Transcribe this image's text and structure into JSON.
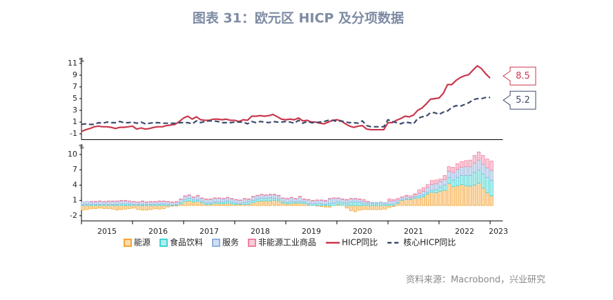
{
  "title": "图表 31：欧元区 HICP 及分项数据",
  "source": "资料来源：Macrobond，兴业研究",
  "chart_data": [
    {
      "type": "line",
      "y_unit": "%",
      "xlim": [
        2015,
        2023.25
      ],
      "ylim": [
        -2,
        12
      ],
      "yticks": [
        -1,
        1,
        3,
        5,
        7,
        9,
        11
      ],
      "x": [
        2015,
        2015.083,
        2015.167,
        2015.25,
        2015.333,
        2015.417,
        2015.5,
        2015.583,
        2015.667,
        2015.75,
        2015.833,
        2015.917,
        2016,
        2016.083,
        2016.167,
        2016.25,
        2016.333,
        2016.417,
        2016.5,
        2016.583,
        2016.667,
        2016.75,
        2016.833,
        2016.917,
        2017,
        2017.083,
        2017.167,
        2017.25,
        2017.333,
        2017.417,
        2017.5,
        2017.583,
        2017.667,
        2017.75,
        2017.833,
        2017.917,
        2018,
        2018.083,
        2018.167,
        2018.25,
        2018.333,
        2018.417,
        2018.5,
        2018.583,
        2018.667,
        2018.75,
        2018.833,
        2018.917,
        2019,
        2019.083,
        2019.167,
        2019.25,
        2019.333,
        2019.417,
        2019.5,
        2019.583,
        2019.667,
        2019.75,
        2019.833,
        2019.917,
        2020,
        2020.083,
        2020.167,
        2020.25,
        2020.333,
        2020.417,
        2020.5,
        2020.583,
        2020.667,
        2020.75,
        2020.833,
        2020.917,
        2021,
        2021.083,
        2021.167,
        2021.25,
        2021.333,
        2021.417,
        2021.5,
        2021.583,
        2021.667,
        2021.75,
        2021.833,
        2021.917,
        2022,
        2022.083,
        2022.167,
        2022.25,
        2022.333,
        2022.417,
        2022.5,
        2022.583,
        2022.667,
        2022.75,
        2022.833,
        2022.917,
        2023
      ],
      "series": [
        {
          "name": "HICP同比",
          "color": "#c9364b",
          "dash": false,
          "values": [
            -0.6,
            -0.3,
            -0.1,
            0.2,
            0.3,
            0.2,
            0.2,
            0.1,
            -0.1,
            0.1,
            0.1,
            0.2,
            0.3,
            -0.2,
            0.0,
            -0.2,
            -0.1,
            0.1,
            0.2,
            0.2,
            0.4,
            0.5,
            0.6,
            1.1,
            1.7,
            2.0,
            1.5,
            1.9,
            1.4,
            1.3,
            1.3,
            1.5,
            1.5,
            1.4,
            1.5,
            1.3,
            1.3,
            1.1,
            1.4,
            1.3,
            2.0,
            2.0,
            2.1,
            2.0,
            2.1,
            2.3,
            1.9,
            1.5,
            1.4,
            1.5,
            1.4,
            1.7,
            1.2,
            1.3,
            1.0,
            1.0,
            0.8,
            0.7,
            1.0,
            1.3,
            1.4,
            1.2,
            0.7,
            0.3,
            0.1,
            0.3,
            0.4,
            -0.2,
            -0.3,
            -0.3,
            -0.3,
            -0.3,
            0.9,
            0.9,
            1.3,
            1.6,
            2.0,
            1.9,
            2.2,
            3.0,
            3.4,
            4.1,
            4.9,
            5.0,
            5.1,
            5.9,
            7.4,
            7.4,
            8.1,
            8.6,
            8.9,
            9.1,
            9.9,
            10.6,
            10.1,
            9.2,
            8.5
          ]
        },
        {
          "name": "核心HICP同比",
          "color": "#3b4a6d",
          "dash": true,
          "values": [
            0.6,
            0.7,
            0.6,
            0.6,
            0.9,
            0.8,
            1.0,
            0.9,
            0.9,
            1.1,
            0.9,
            0.9,
            1.0,
            0.8,
            1.0,
            0.7,
            0.8,
            0.9,
            0.9,
            0.8,
            0.8,
            0.8,
            0.8,
            0.9,
            0.9,
            0.9,
            0.7,
            1.2,
            0.9,
            1.1,
            1.2,
            1.2,
            1.1,
            0.9,
            0.9,
            0.9,
            1.0,
            1.0,
            1.0,
            0.7,
            1.1,
            0.9,
            1.1,
            1.0,
            0.9,
            1.1,
            1.0,
            1.0,
            1.1,
            1.0,
            0.8,
            1.3,
            0.8,
            1.1,
            0.9,
            0.9,
            1.0,
            1.1,
            1.3,
            1.3,
            1.1,
            1.2,
            1.0,
            0.9,
            0.9,
            0.8,
            1.2,
            0.4,
            0.2,
            0.2,
            0.2,
            0.2,
            1.4,
            1.1,
            0.9,
            0.7,
            1.0,
            0.9,
            0.7,
            1.6,
            1.9,
            2.0,
            2.6,
            2.6,
            2.3,
            2.7,
            2.9,
            3.5,
            3.8,
            3.7,
            4.0,
            4.3,
            4.8,
            5.0,
            5.0,
            5.2,
            5.2
          ]
        }
      ]
    },
    {
      "type": "bar",
      "stacked": true,
      "y_unit": "%",
      "xlim": [
        2015,
        2023.25
      ],
      "ylim": [
        -3,
        12
      ],
      "yticks": [
        -2,
        1,
        4,
        7,
        10
      ],
      "xticks": [
        2015,
        2016,
        2017,
        2018,
        2019,
        2020,
        2021,
        2022,
        2023
      ],
      "x": [
        2015,
        2015.083,
        2015.167,
        2015.25,
        2015.333,
        2015.417,
        2015.5,
        2015.583,
        2015.667,
        2015.75,
        2015.833,
        2015.917,
        2016,
        2016.083,
        2016.167,
        2016.25,
        2016.333,
        2016.417,
        2016.5,
        2016.583,
        2016.667,
        2016.75,
        2016.833,
        2016.917,
        2017,
        2017.083,
        2017.167,
        2017.25,
        2017.333,
        2017.417,
        2017.5,
        2017.583,
        2017.667,
        2017.75,
        2017.833,
        2017.917,
        2018,
        2018.083,
        2018.167,
        2018.25,
        2018.333,
        2018.417,
        2018.5,
        2018.583,
        2018.667,
        2018.75,
        2018.833,
        2018.917,
        2019,
        2019.083,
        2019.167,
        2019.25,
        2019.333,
        2019.417,
        2019.5,
        2019.583,
        2019.667,
        2019.75,
        2019.833,
        2019.917,
        2020,
        2020.083,
        2020.167,
        2020.25,
        2020.333,
        2020.417,
        2020.5,
        2020.583,
        2020.667,
        2020.75,
        2020.833,
        2020.917,
        2021,
        2021.083,
        2021.167,
        2021.25,
        2021.333,
        2021.417,
        2021.5,
        2021.583,
        2021.667,
        2021.75,
        2021.833,
        2021.917,
        2022,
        2022.083,
        2022.167,
        2022.25,
        2022.333,
        2022.417,
        2022.5,
        2022.583,
        2022.667,
        2022.75,
        2022.833,
        2022.917,
        2023
      ],
      "series": [
        {
          "name": "能源",
          "color": "#f4a534",
          "values": [
            -0.9,
            -0.8,
            -0.6,
            -0.6,
            -0.5,
            -0.6,
            -0.6,
            -0.7,
            -0.9,
            -0.8,
            -0.7,
            -0.6,
            -0.5,
            -0.8,
            -0.9,
            -0.9,
            -0.8,
            -0.6,
            -0.7,
            -0.6,
            -0.3,
            -0.1,
            -0.1,
            0.3,
            0.8,
            0.9,
            0.7,
            0.8,
            0.5,
            0.2,
            0.2,
            0.4,
            0.4,
            0.3,
            0.5,
            0.3,
            0.2,
            0.2,
            0.2,
            0.3,
            0.6,
            0.8,
            0.9,
            0.9,
            0.9,
            1.0,
            0.9,
            0.5,
            0.3,
            0.4,
            0.5,
            0.5,
            0.4,
            0.1,
            0.0,
            -0.1,
            -0.2,
            -0.3,
            -0.3,
            0.0,
            0.2,
            0.0,
            -0.5,
            -1.0,
            -1.2,
            -0.9,
            -0.8,
            -0.8,
            -0.8,
            -0.8,
            -0.8,
            -0.7,
            -0.4,
            -0.2,
            0.4,
            1.0,
            1.2,
            1.2,
            1.4,
            1.5,
            1.7,
            2.2,
            2.6,
            2.5,
            2.8,
            3.0,
            4.3,
            3.7,
            3.9,
            4.1,
            3.9,
            3.8,
            4.0,
            4.4,
            3.4,
            2.5,
            1.9
          ]
        },
        {
          "name": "食品饮料",
          "color": "#3fd3d3",
          "values": [
            0.2,
            0.2,
            0.2,
            0.2,
            0.2,
            0.2,
            0.2,
            0.2,
            0.2,
            0.3,
            0.3,
            0.3,
            0.2,
            0.2,
            0.2,
            0.2,
            0.2,
            0.2,
            0.3,
            0.3,
            0.2,
            0.1,
            0.2,
            0.3,
            0.4,
            0.5,
            0.4,
            0.3,
            0.3,
            0.3,
            0.3,
            0.3,
            0.3,
            0.4,
            0.4,
            0.4,
            0.3,
            0.2,
            0.4,
            0.5,
            0.4,
            0.5,
            0.5,
            0.5,
            0.6,
            0.4,
            0.4,
            0.3,
            0.3,
            0.4,
            0.2,
            0.3,
            0.3,
            0.3,
            0.3,
            0.4,
            0.3,
            0.2,
            0.4,
            0.5,
            0.5,
            0.5,
            0.5,
            0.7,
            0.7,
            0.7,
            0.4,
            0.4,
            0.4,
            0.4,
            0.4,
            0.3,
            0.3,
            0.3,
            0.2,
            0.1,
            0.1,
            0.1,
            0.3,
            0.4,
            0.4,
            0.4,
            0.4,
            0.6,
            0.8,
            1.0,
            1.2,
            1.3,
            1.6,
            1.8,
            2.0,
            2.1,
            2.5,
            2.6,
            2.8,
            3.0,
            3.0
          ]
        },
        {
          "name": "服务",
          "color": "#8fb0dc",
          "values": [
            0.5,
            0.6,
            0.5,
            0.5,
            0.6,
            0.5,
            0.6,
            0.6,
            0.6,
            0.6,
            0.6,
            0.5,
            0.5,
            0.4,
            0.6,
            0.4,
            0.5,
            0.5,
            0.5,
            0.5,
            0.5,
            0.5,
            0.5,
            0.6,
            0.6,
            0.6,
            0.5,
            0.8,
            0.6,
            0.7,
            0.7,
            0.7,
            0.7,
            0.6,
            0.6,
            0.6,
            0.6,
            0.6,
            0.7,
            0.4,
            0.7,
            0.6,
            0.7,
            0.6,
            0.6,
            0.7,
            0.6,
            0.6,
            0.7,
            0.7,
            0.6,
            0.9,
            0.5,
            0.7,
            0.6,
            0.6,
            0.7,
            0.7,
            0.9,
            0.9,
            0.7,
            0.7,
            0.6,
            0.6,
            0.6,
            0.5,
            0.4,
            0.3,
            0.2,
            0.2,
            0.3,
            0.3,
            0.6,
            0.6,
            0.5,
            0.5,
            0.5,
            0.3,
            0.4,
            0.5,
            0.7,
            0.9,
            1.1,
            1.2,
            1.1,
            1.1,
            1.2,
            1.5,
            1.6,
            1.6,
            1.7,
            1.7,
            1.8,
            1.9,
            1.9,
            1.9,
            2.0
          ]
        },
        {
          "name": "非能源工业商品",
          "color": "#f0809f",
          "values": [
            0.0,
            0.0,
            0.1,
            0.1,
            0.1,
            0.1,
            0.1,
            0.1,
            0.1,
            0.1,
            0.1,
            0.1,
            0.1,
            0.1,
            0.1,
            0.1,
            0.1,
            0.1,
            0.1,
            0.1,
            0.1,
            0.1,
            0.1,
            0.1,
            0.1,
            0.1,
            0.1,
            0.1,
            0.1,
            0.1,
            0.1,
            0.1,
            0.1,
            0.1,
            0.1,
            0.1,
            0.1,
            0.1,
            0.1,
            0.1,
            0.1,
            0.1,
            0.1,
            0.1,
            0.1,
            0.1,
            0.1,
            0.1,
            0.1,
            0.1,
            0.1,
            0.1,
            0.1,
            0.1,
            0.1,
            0.1,
            0.1,
            0.1,
            0.1,
            0.1,
            0.1,
            0.1,
            0.1,
            0.1,
            0.1,
            0.1,
            0.4,
            0.1,
            0.0,
            0.0,
            0.0,
            0.0,
            0.4,
            0.3,
            0.3,
            0.1,
            0.2,
            0.3,
            0.2,
            0.7,
            0.7,
            0.6,
            0.8,
            0.7,
            0.5,
            0.8,
            0.9,
            1.0,
            1.1,
            1.1,
            1.2,
            1.3,
            1.5,
            1.6,
            1.7,
            1.7,
            1.8
          ]
        }
      ]
    }
  ]
}
